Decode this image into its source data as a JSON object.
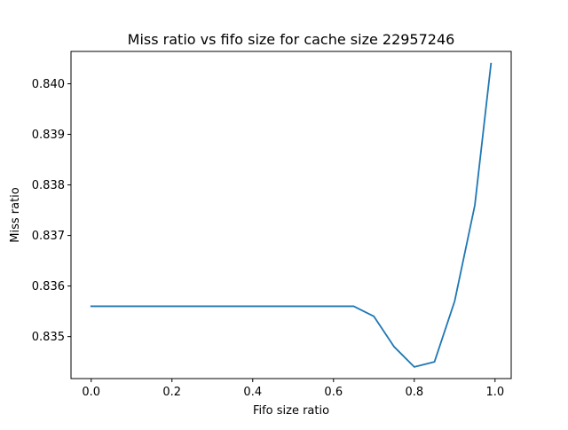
{
  "chart_data": {
    "type": "line",
    "title": "Miss ratio vs fifo size for cache size 22957246",
    "xlabel": "Fifo size ratio",
    "ylabel": "Miss ratio",
    "xlim": [
      -0.05,
      1.04
    ],
    "ylim": [
      0.83417,
      0.84064
    ],
    "grid": false,
    "x_ticks": [
      {
        "value": 0.0,
        "label": "0.0"
      },
      {
        "value": 0.2,
        "label": "0.2"
      },
      {
        "value": 0.4,
        "label": "0.4"
      },
      {
        "value": 0.6,
        "label": "0.6"
      },
      {
        "value": 0.8,
        "label": "0.8"
      },
      {
        "value": 1.0,
        "label": "1.0"
      }
    ],
    "y_ticks": [
      {
        "value": 0.835,
        "label": "0.835"
      },
      {
        "value": 0.836,
        "label": "0.836"
      },
      {
        "value": 0.837,
        "label": "0.837"
      },
      {
        "value": 0.838,
        "label": "0.838"
      },
      {
        "value": 0.839,
        "label": "0.839"
      },
      {
        "value": 0.84,
        "label": "0.840"
      }
    ],
    "series": [
      {
        "color": "#1f77b4",
        "x": [
          0.0,
          0.05,
          0.1,
          0.15,
          0.2,
          0.25,
          0.3,
          0.35,
          0.4,
          0.45,
          0.5,
          0.55,
          0.6,
          0.65,
          0.7,
          0.75,
          0.8,
          0.85,
          0.9,
          0.95,
          0.99
        ],
        "y": [
          0.8356,
          0.8356,
          0.8356,
          0.8356,
          0.8356,
          0.8356,
          0.8356,
          0.8356,
          0.8356,
          0.8356,
          0.8356,
          0.8356,
          0.8356,
          0.8356,
          0.8354,
          0.8348,
          0.8344,
          0.8345,
          0.8357,
          0.8376,
          0.8404
        ]
      }
    ]
  }
}
